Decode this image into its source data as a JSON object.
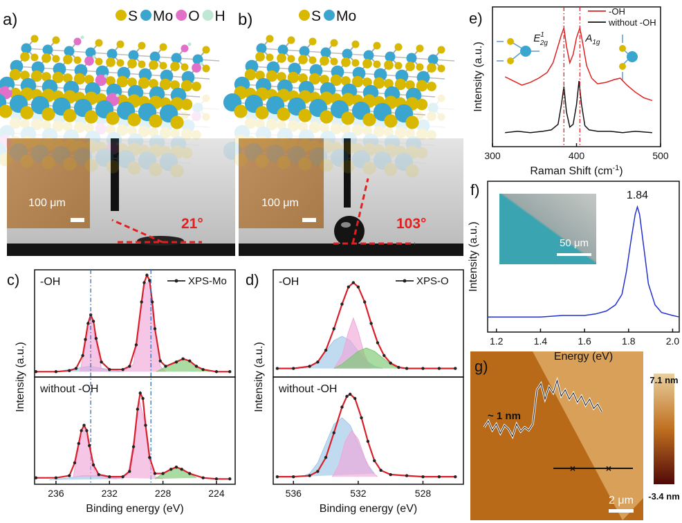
{
  "panels": {
    "a": {
      "label": "a)",
      "legend": [
        {
          "name": "S",
          "color": "#d8b800"
        },
        {
          "name": "Mo",
          "color": "#3aa6d0"
        },
        {
          "name": "O",
          "color": "#e070c8"
        },
        {
          "name": "H",
          "color": "#bfe8d4"
        }
      ],
      "scale_bar": "100 μm",
      "angle": "21°"
    },
    "b": {
      "label": "b)",
      "legend": [
        {
          "name": "S",
          "color": "#d8b800"
        },
        {
          "name": "Mo",
          "color": "#3aa6d0"
        }
      ],
      "scale_bar": "100 μm",
      "angle": "103°"
    },
    "g": {
      "label": "g)",
      "step_label": "~ 1 nm",
      "profile": [
        0.25,
        0.35,
        0.2,
        0.3,
        0.15,
        0.28,
        0.22,
        0.1,
        0.3,
        0.18,
        0.25,
        0.2,
        0.3,
        0.85,
        0.95,
        0.7,
        0.9,
        0.8,
        1,
        0.75,
        0.85,
        0.7,
        0.8,
        0.65,
        0.75,
        0.6,
        0.7,
        0.55,
        0.62,
        0.5
      ],
      "colorbar": {
        "max": "7.1 nm",
        "min": "-3.4 nm"
      },
      "scale_bar": "2 μm"
    }
  },
  "chart_data": [
    {
      "type": "line",
      "panel_label": "c)",
      "label": "-OH",
      "xlim": [
        237.6,
        222.6
      ],
      "ylim": [
        0,
        1
      ],
      "vlines": [
        233.4,
        228.9
      ],
      "vline_color": "#2a6fc0",
      "series": [
        {
          "style": "area",
          "color": "#9ec8e8",
          "x": [
            236,
            235,
            234,
            233.5,
            233,
            232,
            231
          ],
          "values": [
            0.05,
            0.07,
            0.09,
            0.1,
            0.09,
            0.07,
            0.05
          ]
        },
        {
          "style": "area",
          "color": "#f0a8d8",
          "x": [
            234.2,
            233.8,
            233.4,
            233,
            232.6,
            232,
            231,
            230.2,
            229.8,
            229.4,
            229,
            228.6,
            228.2,
            227.8
          ],
          "values": [
            0.05,
            0.3,
            0.55,
            0.32,
            0.08,
            0.05,
            0.05,
            0.12,
            0.5,
            0.85,
            0.9,
            0.45,
            0.1,
            0.05
          ]
        },
        {
          "style": "area",
          "color": "#7cc870",
          "x": [
            228.5,
            228,
            227.5,
            227,
            226.5,
            226,
            225.5,
            225,
            224.5
          ],
          "values": [
            0.05,
            0.08,
            0.12,
            0.15,
            0.17,
            0.15,
            0.1,
            0.07,
            0.05
          ]
        },
        {
          "name": "XPS-Mo",
          "color": "#222222",
          "fit_color": "#d8202a",
          "x": [
            237.5,
            236,
            235,
            234.5,
            234,
            233.8,
            233.6,
            233.4,
            233.2,
            233,
            232.6,
            232,
            231,
            230.5,
            230,
            229.6,
            229.4,
            229.2,
            229,
            228.8,
            228.6,
            228.2,
            227.8,
            227,
            226.5,
            226,
            225.5,
            225,
            224,
            223
          ],
          "values": [
            0.05,
            0.05,
            0.06,
            0.08,
            0.2,
            0.35,
            0.5,
            0.58,
            0.52,
            0.36,
            0.14,
            0.07,
            0.07,
            0.1,
            0.3,
            0.7,
            0.88,
            0.95,
            0.9,
            0.7,
            0.45,
            0.15,
            0.1,
            0.14,
            0.17,
            0.15,
            0.1,
            0.07,
            0.05,
            0.05
          ]
        }
      ]
    },
    {
      "type": "line",
      "label": "without -OH",
      "ylabel": "Intensity (a.u.)",
      "xlabel": "Binding energy (eV)",
      "xlim": [
        237.6,
        222.6
      ],
      "ylim": [
        0,
        1
      ],
      "xticks": [
        236,
        232,
        228,
        224
      ],
      "series": [
        {
          "style": "area",
          "color": "#9ec8e8",
          "x": [
            236.5,
            235,
            234,
            233,
            232,
            231
          ],
          "values": [
            0.04,
            0.06,
            0.08,
            0.08,
            0.07,
            0.05
          ]
        },
        {
          "style": "area",
          "color": "#f0a8d8",
          "x": [
            234.7,
            234.3,
            233.9,
            233.5,
            233.1,
            232.6,
            231.5,
            230.6,
            230.2,
            229.8,
            229.4,
            229,
            228.6,
            228
          ],
          "values": [
            0.07,
            0.35,
            0.52,
            0.35,
            0.12,
            0.06,
            0.05,
            0.1,
            0.4,
            0.8,
            0.6,
            0.2,
            0.07,
            0.05
          ]
        },
        {
          "style": "area",
          "color": "#7cc870",
          "x": [
            228.6,
            228,
            227.5,
            227,
            226.5,
            226,
            225.5
          ],
          "values": [
            0.05,
            0.1,
            0.14,
            0.16,
            0.14,
            0.1,
            0.06
          ]
        },
        {
          "color": "#222222",
          "fit_color": "#d8202a",
          "x": [
            237.5,
            236,
            235,
            234.6,
            234.3,
            234.1,
            233.9,
            233.7,
            233.5,
            233.2,
            232.8,
            232,
            231,
            230.5,
            230.2,
            229.9,
            229.7,
            229.5,
            229.3,
            229,
            228.6,
            228,
            227.4,
            227,
            226.6,
            226,
            225,
            224,
            223
          ],
          "values": [
            0.06,
            0.06,
            0.08,
            0.2,
            0.38,
            0.5,
            0.55,
            0.5,
            0.36,
            0.18,
            0.09,
            0.07,
            0.07,
            0.12,
            0.35,
            0.7,
            0.85,
            0.8,
            0.55,
            0.25,
            0.1,
            0.1,
            0.14,
            0.16,
            0.14,
            0.1,
            0.06,
            0.05,
            0.05
          ]
        }
      ]
    },
    {
      "type": "line",
      "panel_label": "d)",
      "label": "-OH",
      "xlim": [
        537.25,
        525.5
      ],
      "ylim": [
        0,
        1
      ],
      "series": [
        {
          "style": "area",
          "color": "#9ec8e8",
          "x": [
            535.5,
            535,
            534.5,
            534,
            533.5,
            533,
            532.5,
            532,
            531.5,
            531,
            530.5
          ],
          "values": [
            0.08,
            0.1,
            0.15,
            0.24,
            0.34,
            0.38,
            0.34,
            0.24,
            0.15,
            0.1,
            0.08
          ]
        },
        {
          "style": "area",
          "color": "#f0a8d8",
          "x": [
            533.5,
            533,
            532.6,
            532.3,
            532,
            531.6,
            531.2
          ],
          "values": [
            0.08,
            0.2,
            0.42,
            0.55,
            0.42,
            0.2,
            0.08
          ]
        },
        {
          "style": "area",
          "color": "#7cc870",
          "x": [
            533.5,
            533,
            532.5,
            532,
            531.5,
            531,
            530.5,
            530,
            529.5
          ],
          "values": [
            0.08,
            0.12,
            0.18,
            0.24,
            0.27,
            0.24,
            0.18,
            0.12,
            0.08
          ]
        },
        {
          "name": "XPS-O",
          "color": "#222222",
          "fit_color": "#d8202a",
          "x": [
            537,
            536,
            535,
            534.5,
            534,
            533.5,
            533,
            532.6,
            532.3,
            532,
            531.6,
            531.2,
            530.8,
            530.4,
            530,
            529.5,
            529,
            528,
            527,
            526
          ],
          "values": [
            0.08,
            0.08,
            0.1,
            0.14,
            0.25,
            0.45,
            0.68,
            0.84,
            0.88,
            0.84,
            0.7,
            0.5,
            0.32,
            0.2,
            0.13,
            0.09,
            0.08,
            0.08,
            0.08,
            0.08
          ]
        }
      ]
    },
    {
      "type": "line",
      "label": "without -OH",
      "ylabel": "Intensity (a.u.)",
      "xlabel": "Binding energy (eV)",
      "xlim": [
        537.25,
        525.5
      ],
      "ylim": [
        0,
        1
      ],
      "xticks": [
        536,
        532,
        528
      ],
      "series": [
        {
          "style": "area",
          "color": "#9ec8e8",
          "x": [
            535.5,
            535,
            534.5,
            534,
            533.5,
            533,
            532.5,
            532,
            531.5,
            531
          ],
          "values": [
            0.07,
            0.1,
            0.2,
            0.38,
            0.56,
            0.62,
            0.55,
            0.38,
            0.2,
            0.1
          ]
        },
        {
          "style": "area",
          "color": "#f0a8d8",
          "x": [
            533.6,
            533.2,
            532.8,
            532.4,
            532,
            531.6,
            531.2,
            530.8
          ],
          "values": [
            0.07,
            0.18,
            0.4,
            0.5,
            0.42,
            0.25,
            0.12,
            0.07
          ]
        },
        {
          "color": "#222222",
          "fit_color": "#d8202a",
          "x": [
            537,
            536,
            535,
            534.5,
            534,
            533.5,
            533,
            532.7,
            532.5,
            532.2,
            531.8,
            531.4,
            531,
            530.6,
            530,
            529,
            528,
            527,
            526
          ],
          "values": [
            0.07,
            0.07,
            0.08,
            0.12,
            0.25,
            0.48,
            0.72,
            0.82,
            0.84,
            0.8,
            0.62,
            0.4,
            0.22,
            0.13,
            0.09,
            0.08,
            0.07,
            0.07,
            0.07
          ]
        }
      ]
    },
    {
      "type": "line",
      "panel_label": "e)",
      "ylabel": "Intensity (a.u.)",
      "xlabel": {
        "text": "Raman Shift (cm",
        "sup": "-1",
        "tail": ")"
      },
      "xlim": [
        300,
        500
      ],
      "ylim": [
        0,
        1
      ],
      "xticks": [
        300,
        400,
        500
      ],
      "vlines": [
        385,
        404
      ],
      "vline_color": "#d8202a",
      "peak_labels": [
        {
          "base": "E",
          "sup": "1",
          "sub": "2g"
        },
        {
          "base": "A",
          "sub": "1g"
        }
      ],
      "series": [
        {
          "name": "-OH",
          "color": "#e02020",
          "x": [
            315,
            325,
            335,
            345,
            355,
            365,
            372,
            378,
            382,
            385,
            388,
            392,
            396,
            400,
            404,
            408,
            412,
            418,
            425,
            435,
            445,
            452,
            460,
            470,
            480,
            490
          ],
          "values": [
            0.5,
            0.47,
            0.44,
            0.46,
            0.49,
            0.53,
            0.6,
            0.72,
            0.8,
            0.85,
            0.72,
            0.6,
            0.66,
            0.78,
            0.85,
            0.72,
            0.58,
            0.49,
            0.45,
            0.46,
            0.48,
            0.49,
            0.44,
            0.39,
            0.35,
            0.33
          ]
        },
        {
          "name": "without -OH",
          "color": "#111111",
          "x": [
            315,
            330,
            345,
            360,
            370,
            378,
            382,
            385,
            388,
            392,
            396,
            400,
            403,
            406,
            410,
            415,
            425,
            440,
            455,
            470,
            490
          ],
          "values": [
            0.1,
            0.11,
            0.1,
            0.11,
            0.12,
            0.16,
            0.3,
            0.43,
            0.25,
            0.14,
            0.16,
            0.3,
            0.47,
            0.3,
            0.15,
            0.12,
            0.11,
            0.11,
            0.1,
            0.11,
            0.1
          ]
        }
      ]
    },
    {
      "type": "line",
      "panel_label": "f)",
      "ylabel": "Intensity (a.u.)",
      "xlabel": "Energy (eV)",
      "xlim": [
        1.16,
        2.03
      ],
      "ylim": [
        0,
        1
      ],
      "xticks": [
        1.2,
        1.4,
        1.6,
        1.8,
        {
          "value": 2,
          "label": "2.0"
        }
      ],
      "peak_annotation": "1.84",
      "inset_scale_bar": "50 μm",
      "series": [
        {
          "color": "#2030d0",
          "x": [
            1.16,
            1.3,
            1.4,
            1.5,
            1.6,
            1.65,
            1.7,
            1.74,
            1.77,
            1.79,
            1.81,
            1.83,
            1.84,
            1.85,
            1.87,
            1.89,
            1.92,
            1.95,
            2,
            2.03
          ],
          "values": [
            0.1,
            0.1,
            0.1,
            0.11,
            0.11,
            0.12,
            0.14,
            0.18,
            0.25,
            0.4,
            0.6,
            0.78,
            0.83,
            0.78,
            0.55,
            0.32,
            0.18,
            0.13,
            0.11,
            0.1
          ]
        }
      ]
    }
  ]
}
